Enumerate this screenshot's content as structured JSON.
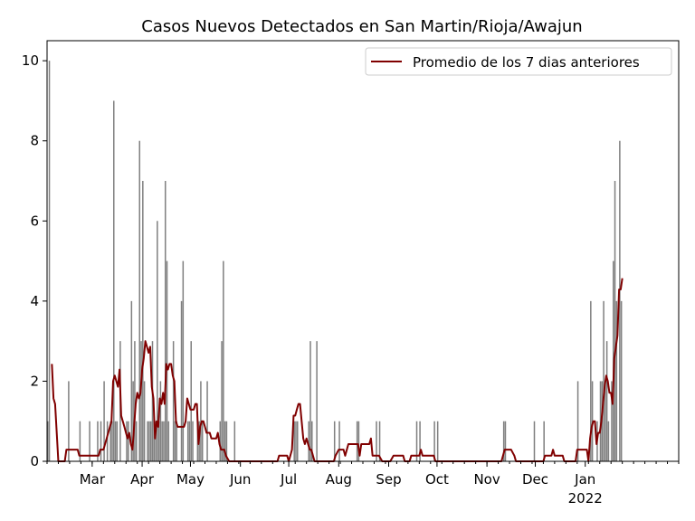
{
  "chart_data": {
    "type": "bar",
    "title": "Casos Nuevos Detectados en San Martin/Rioja/Awajun",
    "xlabel": "",
    "ylabel": "",
    "x_start": "2021-02-01",
    "x_end": "2022-02-28",
    "ylim": [
      0,
      10.5
    ],
    "yticks": [
      0,
      2,
      4,
      6,
      8,
      10
    ],
    "xticks": [
      {
        "date": "2021-03-01",
        "label": "Mar"
      },
      {
        "date": "2021-04-01",
        "label": "Apr"
      },
      {
        "date": "2021-05-01",
        "label": "May"
      },
      {
        "date": "2021-06-01",
        "label": "Jun"
      },
      {
        "date": "2021-07-01",
        "label": "Jul"
      },
      {
        "date": "2021-08-01",
        "label": "Aug"
      },
      {
        "date": "2021-09-01",
        "label": "Sep"
      },
      {
        "date": "2021-10-01",
        "label": "Oct"
      },
      {
        "date": "2021-11-01",
        "label": "Nov"
      },
      {
        "date": "2021-12-01",
        "label": "Dec"
      },
      {
        "date": "2022-01-01",
        "label": "Jan",
        "sublabel": "2022"
      }
    ],
    "grid": false,
    "legend": {
      "position": "top-right",
      "entries": [
        "Promedio de los 7 dias anteriores"
      ]
    },
    "bar_color": "#808080",
    "line_color": "#800000",
    "series": [
      {
        "kind": "bar",
        "points": [
          [
            "2021-02-01",
            1
          ],
          [
            "2021-02-02",
            10
          ],
          [
            "2021-02-14",
            2
          ],
          [
            "2021-02-21",
            1
          ],
          [
            "2021-02-27",
            1
          ],
          [
            "2021-03-04",
            1
          ],
          [
            "2021-03-06",
            1
          ],
          [
            "2021-03-08",
            2
          ],
          [
            "2021-03-10",
            1
          ],
          [
            "2021-03-12",
            1
          ],
          [
            "2021-03-13",
            1
          ],
          [
            "2021-03-14",
            9
          ],
          [
            "2021-03-15",
            1
          ],
          [
            "2021-03-16",
            1
          ],
          [
            "2021-03-18",
            3
          ],
          [
            "2021-03-22",
            1
          ],
          [
            "2021-03-23",
            1
          ],
          [
            "2021-03-25",
            4
          ],
          [
            "2021-03-26",
            2
          ],
          [
            "2021-03-27",
            3
          ],
          [
            "2021-03-28",
            1
          ],
          [
            "2021-03-30",
            8
          ],
          [
            "2021-03-31",
            3
          ],
          [
            "2021-04-01",
            7
          ],
          [
            "2021-04-02",
            2
          ],
          [
            "2021-04-04",
            1
          ],
          [
            "2021-04-05",
            1
          ],
          [
            "2021-04-06",
            1
          ],
          [
            "2021-04-07",
            3
          ],
          [
            "2021-04-08",
            1
          ],
          [
            "2021-04-09",
            1
          ],
          [
            "2021-04-10",
            6
          ],
          [
            "2021-04-11",
            1
          ],
          [
            "2021-04-12",
            2
          ],
          [
            "2021-04-13",
            1
          ],
          [
            "2021-04-14",
            1
          ],
          [
            "2021-04-15",
            7
          ],
          [
            "2021-04-16",
            5
          ],
          [
            "2021-04-17",
            1
          ],
          [
            "2021-04-20",
            3
          ],
          [
            "2021-04-21",
            1
          ],
          [
            "2021-04-22",
            1
          ],
          [
            "2021-04-25",
            4
          ],
          [
            "2021-04-26",
            5
          ],
          [
            "2021-04-29",
            1
          ],
          [
            "2021-04-30",
            1
          ],
          [
            "2021-05-01",
            3
          ],
          [
            "2021-05-02",
            1
          ],
          [
            "2021-05-05",
            1
          ],
          [
            "2021-05-06",
            1
          ],
          [
            "2021-05-07",
            2
          ],
          [
            "2021-05-08",
            1
          ],
          [
            "2021-05-11",
            2
          ],
          [
            "2021-05-19",
            1
          ],
          [
            "2021-05-20",
            3
          ],
          [
            "2021-05-21",
            5
          ],
          [
            "2021-05-22",
            1
          ],
          [
            "2021-05-23",
            1
          ],
          [
            "2021-05-28",
            1
          ],
          [
            "2021-07-04",
            1
          ],
          [
            "2021-07-05",
            1
          ],
          [
            "2021-07-06",
            1
          ],
          [
            "2021-07-13",
            1
          ],
          [
            "2021-07-14",
            3
          ],
          [
            "2021-07-15",
            1
          ],
          [
            "2021-07-18",
            3
          ],
          [
            "2021-07-29",
            1
          ],
          [
            "2021-08-01",
            1
          ],
          [
            "2021-08-12",
            1
          ],
          [
            "2021-08-13",
            1
          ],
          [
            "2021-08-24",
            1
          ],
          [
            "2021-08-26",
            1
          ],
          [
            "2021-09-18",
            1
          ],
          [
            "2021-09-20",
            1
          ],
          [
            "2021-09-29",
            1
          ],
          [
            "2021-10-01",
            1
          ],
          [
            "2021-11-11",
            1
          ],
          [
            "2021-11-12",
            1
          ],
          [
            "2021-11-30",
            1
          ],
          [
            "2021-12-06",
            1
          ],
          [
            "2021-12-27",
            2
          ],
          [
            "2022-01-04",
            4
          ],
          [
            "2022-01-05",
            2
          ],
          [
            "2022-01-08",
            1
          ],
          [
            "2022-01-10",
            2
          ],
          [
            "2022-01-11",
            2
          ],
          [
            "2022-01-12",
            4
          ],
          [
            "2022-01-13",
            2
          ],
          [
            "2022-01-14",
            3
          ],
          [
            "2022-01-15",
            1
          ],
          [
            "2022-01-17",
            2
          ],
          [
            "2022-01-18",
            5
          ],
          [
            "2022-01-19",
            7
          ],
          [
            "2022-01-20",
            4
          ],
          [
            "2022-01-22",
            8
          ],
          [
            "2022-01-23",
            4
          ]
        ]
      },
      {
        "kind": "line",
        "name": "Promedio de los 7 dias anteriores",
        "points": [
          [
            "2021-02-04",
            2.43
          ],
          [
            "2021-02-05",
            1.57
          ],
          [
            "2021-02-06",
            1.43
          ],
          [
            "2021-02-08",
            0
          ],
          [
            "2021-02-12",
            0
          ],
          [
            "2021-02-13",
            0.29
          ],
          [
            "2021-02-20",
            0.29
          ],
          [
            "2021-02-21",
            0.14
          ],
          [
            "2021-03-05",
            0.14
          ],
          [
            "2021-03-06",
            0.29
          ],
          [
            "2021-03-08",
            0.29
          ],
          [
            "2021-03-10",
            0.57
          ],
          [
            "2021-03-12",
            0.86
          ],
          [
            "2021-03-13",
            1.0
          ],
          [
            "2021-03-14",
            2.0
          ],
          [
            "2021-03-15",
            2.14
          ],
          [
            "2021-03-16",
            2.0
          ],
          [
            "2021-03-17",
            1.86
          ],
          [
            "2021-03-18",
            2.29
          ],
          [
            "2021-03-19",
            1.14
          ],
          [
            "2021-03-20",
            1.0
          ],
          [
            "2021-03-21",
            0.86
          ],
          [
            "2021-03-22",
            0.71
          ],
          [
            "2021-03-23",
            0.57
          ],
          [
            "2021-03-24",
            0.71
          ],
          [
            "2021-03-25",
            0.43
          ],
          [
            "2021-03-26",
            0.29
          ],
          [
            "2021-03-27",
            0.86
          ],
          [
            "2021-03-28",
            1.43
          ],
          [
            "2021-03-29",
            1.71
          ],
          [
            "2021-03-30",
            1.57
          ],
          [
            "2021-03-31",
            1.71
          ],
          [
            "2021-04-01",
            2.29
          ],
          [
            "2021-04-02",
            2.57
          ],
          [
            "2021-04-03",
            3.0
          ],
          [
            "2021-04-04",
            2.86
          ],
          [
            "2021-04-05",
            2.71
          ],
          [
            "2021-04-06",
            2.86
          ],
          [
            "2021-04-07",
            1.86
          ],
          [
            "2021-04-08",
            1.57
          ],
          [
            "2021-04-09",
            0.57
          ],
          [
            "2021-04-10",
            1.0
          ],
          [
            "2021-04-11",
            0.86
          ],
          [
            "2021-04-12",
            1.57
          ],
          [
            "2021-04-13",
            1.43
          ],
          [
            "2021-04-14",
            1.71
          ],
          [
            "2021-04-15",
            1.43
          ],
          [
            "2021-04-16",
            2.43
          ],
          [
            "2021-04-17",
            2.29
          ],
          [
            "2021-04-18",
            2.43
          ],
          [
            "2021-04-19",
            2.43
          ],
          [
            "2021-04-20",
            2.14
          ],
          [
            "2021-04-21",
            2.0
          ],
          [
            "2021-04-22",
            1.0
          ],
          [
            "2021-04-23",
            0.86
          ],
          [
            "2021-04-27",
            0.86
          ],
          [
            "2021-04-28",
            1.0
          ],
          [
            "2021-04-29",
            1.57
          ],
          [
            "2021-04-30",
            1.43
          ],
          [
            "2021-05-01",
            1.29
          ],
          [
            "2021-05-03",
            1.29
          ],
          [
            "2021-05-04",
            1.43
          ],
          [
            "2021-05-05",
            1.43
          ],
          [
            "2021-05-06",
            0.43
          ],
          [
            "2021-05-07",
            0.86
          ],
          [
            "2021-05-08",
            1.0
          ],
          [
            "2021-05-09",
            1.0
          ],
          [
            "2021-05-10",
            0.86
          ],
          [
            "2021-05-11",
            0.71
          ],
          [
            "2021-05-13",
            0.71
          ],
          [
            "2021-05-14",
            0.57
          ],
          [
            "2021-05-17",
            0.57
          ],
          [
            "2021-05-18",
            0.71
          ],
          [
            "2021-05-19",
            0.43
          ],
          [
            "2021-05-20",
            0.29
          ],
          [
            "2021-05-22",
            0.29
          ],
          [
            "2021-05-23",
            0.14
          ],
          [
            "2021-05-25",
            0
          ],
          [
            "2021-06-24",
            0
          ],
          [
            "2021-06-25",
            0.14
          ],
          [
            "2021-06-30",
            0.14
          ],
          [
            "2021-07-01",
            0
          ],
          [
            "2021-07-03",
            0.29
          ],
          [
            "2021-07-04",
            1.14
          ],
          [
            "2021-07-05",
            1.14
          ],
          [
            "2021-07-06",
            1.29
          ],
          [
            "2021-07-07",
            1.43
          ],
          [
            "2021-07-08",
            1.43
          ],
          [
            "2021-07-09",
            1.0
          ],
          [
            "2021-07-10",
            0.57
          ],
          [
            "2021-07-11",
            0.43
          ],
          [
            "2021-07-12",
            0.57
          ],
          [
            "2021-07-13",
            0.43
          ],
          [
            "2021-07-14",
            0.29
          ],
          [
            "2021-07-15",
            0.29
          ],
          [
            "2021-07-17",
            0
          ],
          [
            "2021-07-29",
            0
          ],
          [
            "2021-07-30",
            0.14
          ],
          [
            "2021-08-01",
            0.29
          ],
          [
            "2021-08-04",
            0.29
          ],
          [
            "2021-08-05",
            0.14
          ],
          [
            "2021-08-07",
            0.43
          ],
          [
            "2021-08-13",
            0.43
          ],
          [
            "2021-08-14",
            0.14
          ],
          [
            "2021-08-15",
            0.43
          ],
          [
            "2021-08-20",
            0.43
          ],
          [
            "2021-08-21",
            0.57
          ],
          [
            "2021-08-22",
            0.14
          ],
          [
            "2021-08-26",
            0.14
          ],
          [
            "2021-08-28",
            0
          ],
          [
            "2021-09-02",
            0
          ],
          [
            "2021-09-04",
            0.14
          ],
          [
            "2021-09-10",
            0.14
          ],
          [
            "2021-09-11",
            0
          ],
          [
            "2021-09-14",
            0
          ],
          [
            "2021-09-15",
            0.14
          ],
          [
            "2021-09-20",
            0.14
          ],
          [
            "2021-09-21",
            0.29
          ],
          [
            "2021-09-22",
            0.14
          ],
          [
            "2021-09-29",
            0.14
          ],
          [
            "2021-09-30",
            0
          ],
          [
            "2021-11-10",
            0
          ],
          [
            "2021-11-12",
            0.29
          ],
          [
            "2021-11-16",
            0.29
          ],
          [
            "2021-11-18",
            0.14
          ],
          [
            "2021-11-19",
            0
          ],
          [
            "2021-12-06",
            0
          ],
          [
            "2021-12-07",
            0.14
          ],
          [
            "2021-12-11",
            0.14
          ],
          [
            "2021-12-12",
            0.29
          ],
          [
            "2021-12-13",
            0.14
          ],
          [
            "2021-12-18",
            0.14
          ],
          [
            "2021-12-19",
            0
          ],
          [
            "2021-12-26",
            0
          ],
          [
            "2021-12-27",
            0.29
          ],
          [
            "2022-01-02",
            0.29
          ],
          [
            "2022-01-03",
            0.0
          ],
          [
            "2022-01-04",
            0.57
          ],
          [
            "2022-01-05",
            0.86
          ],
          [
            "2022-01-06",
            1.0
          ],
          [
            "2022-01-07",
            1.0
          ],
          [
            "2022-01-08",
            0.43
          ],
          [
            "2022-01-09",
            0.71
          ],
          [
            "2022-01-10",
            0.71
          ],
          [
            "2022-01-11",
            1.0
          ],
          [
            "2022-01-12",
            1.43
          ],
          [
            "2022-01-13",
            1.86
          ],
          [
            "2022-01-14",
            2.14
          ],
          [
            "2022-01-15",
            2.0
          ],
          [
            "2022-01-16",
            1.71
          ],
          [
            "2022-01-17",
            1.71
          ],
          [
            "2022-01-18",
            1.43
          ],
          [
            "2022-01-19",
            2.57
          ],
          [
            "2022-01-20",
            2.86
          ],
          [
            "2022-01-21",
            3.14
          ],
          [
            "2022-01-22",
            4.29
          ],
          [
            "2022-01-23",
            4.29
          ],
          [
            "2022-01-24",
            4.57
          ]
        ]
      }
    ]
  }
}
